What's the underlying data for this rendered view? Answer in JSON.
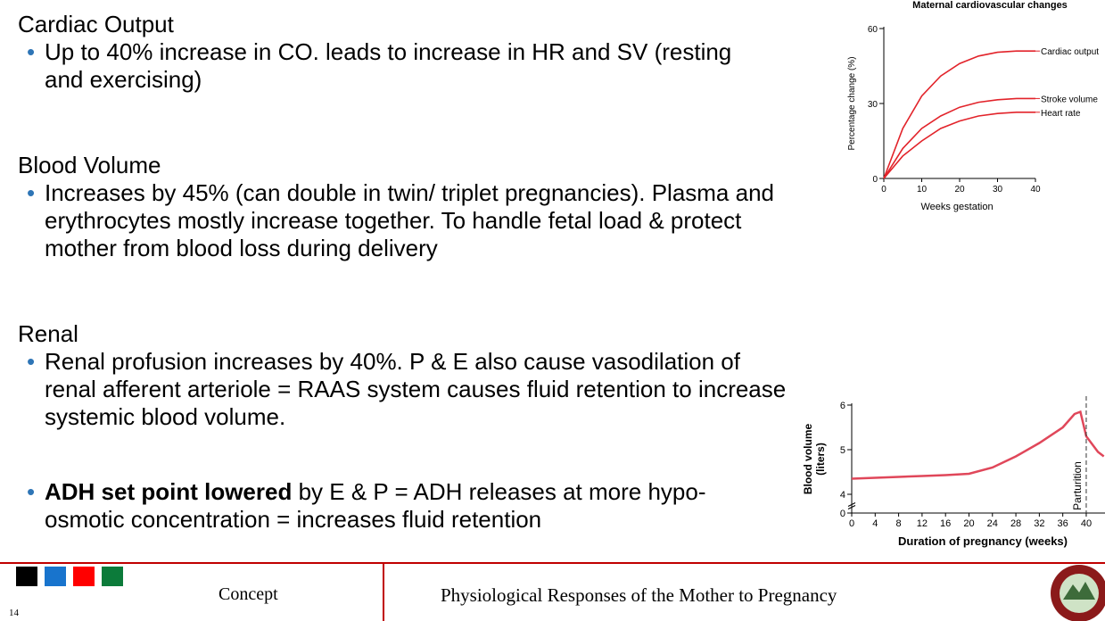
{
  "slide": {
    "sections": [
      {
        "heading": "Cardiac Output",
        "bullets": [
          "Up to 40% increase in CO. leads to increase in HR and SV (resting and exercising)"
        ]
      },
      {
        "heading": "Blood Volume",
        "bullets": [
          "Increases by 45% (can double in twin/ triplet pregnancies). Plasma and erythrocytes mostly increase together. To handle fetal load & protect mother from blood loss during delivery"
        ]
      },
      {
        "heading": "Renal",
        "bullets": [
          "Renal profusion increases by 40%. P & E also cause vasodilation of renal afferent arteriole = RAAS system causes fluid retention to increase systemic blood volume."
        ]
      },
      {
        "bold": "ADH set point lowered",
        "text": "by E & P = ADH releases at more hypo-osmotic concentration = increases fluid retention"
      }
    ],
    "footer": {
      "section": "Concept",
      "title": "Physiological Responses of the Mother to Pregnancy",
      "page": "14"
    }
  },
  "chart_data": [
    {
      "type": "line",
      "title": "Maternal cardiovascular changes",
      "x_label": "Weeks gestation",
      "y_label": "Percentage change (%)",
      "x": [
        0,
        5,
        10,
        15,
        20,
        25,
        30,
        35,
        40
      ],
      "series": [
        {
          "name": "Cardiac output",
          "color": "#e2232a",
          "values": [
            0,
            20,
            33,
            41,
            46,
            49,
            50.5,
            51,
            51
          ]
        },
        {
          "name": "Stroke volume",
          "color": "#e2232a",
          "values": [
            0,
            12,
            20,
            25,
            28.5,
            30.5,
            31.5,
            32,
            32
          ]
        },
        {
          "name": "Heart rate",
          "color": "#e2232a",
          "values": [
            0,
            9,
            15,
            20,
            23,
            25,
            26,
            26.5,
            26.5
          ]
        }
      ],
      "xlim": [
        0,
        40
      ],
      "xticks": [
        0,
        10,
        20,
        30,
        40
      ],
      "ylim": [
        0,
        60
      ],
      "yticks": [
        0,
        30,
        60
      ]
    },
    {
      "type": "line",
      "x_label": "Duration of pregnancy (weeks)",
      "y_label": [
        "Blood volume",
        "(liters)"
      ],
      "x": [
        0,
        4,
        8,
        12,
        16,
        20,
        24,
        28,
        32,
        36,
        38,
        39,
        40,
        42,
        43
      ],
      "series": [
        {
          "color": "#e0475a",
          "values": [
            4.35,
            4.37,
            4.39,
            4.41,
            4.43,
            4.46,
            4.6,
            4.85,
            5.15,
            5.5,
            5.8,
            5.85,
            5.3,
            4.95,
            4.85
          ]
        }
      ],
      "xlim": [
        0,
        43.2
      ],
      "xticks": [
        0,
        4,
        8,
        12,
        16,
        20,
        24,
        28,
        32,
        36,
        40
      ],
      "ylim": [
        4,
        6
      ],
      "yticks": [
        0,
        4,
        5,
        6
      ],
      "axis_break": true,
      "marker": {
        "label": "Parturition",
        "x": 40
      }
    }
  ]
}
